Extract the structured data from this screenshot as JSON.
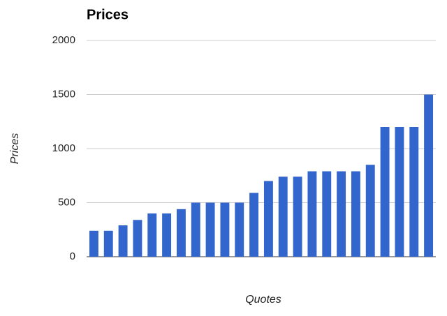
{
  "chart_data": {
    "type": "bar",
    "title": "Prices",
    "y_label": "Prices",
    "x_label": "Quotes",
    "categories": [
      null,
      null,
      null,
      null,
      null,
      null,
      null,
      null,
      null,
      null,
      null,
      null,
      null,
      null,
      null,
      null,
      null,
      null,
      null,
      null,
      null,
      null,
      null,
      null
    ],
    "values": [
      240,
      240,
      290,
      340,
      400,
      400,
      440,
      500,
      500,
      500,
      500,
      590,
      700,
      740,
      740,
      790,
      790,
      790,
      790,
      850,
      1200,
      1200,
      1200,
      1500
    ],
    "color": "#3366cc",
    "ylim": [
      0,
      2000
    ],
    "yticks": [
      0,
      500,
      1000,
      1500,
      2000
    ],
    "grid": true
  }
}
